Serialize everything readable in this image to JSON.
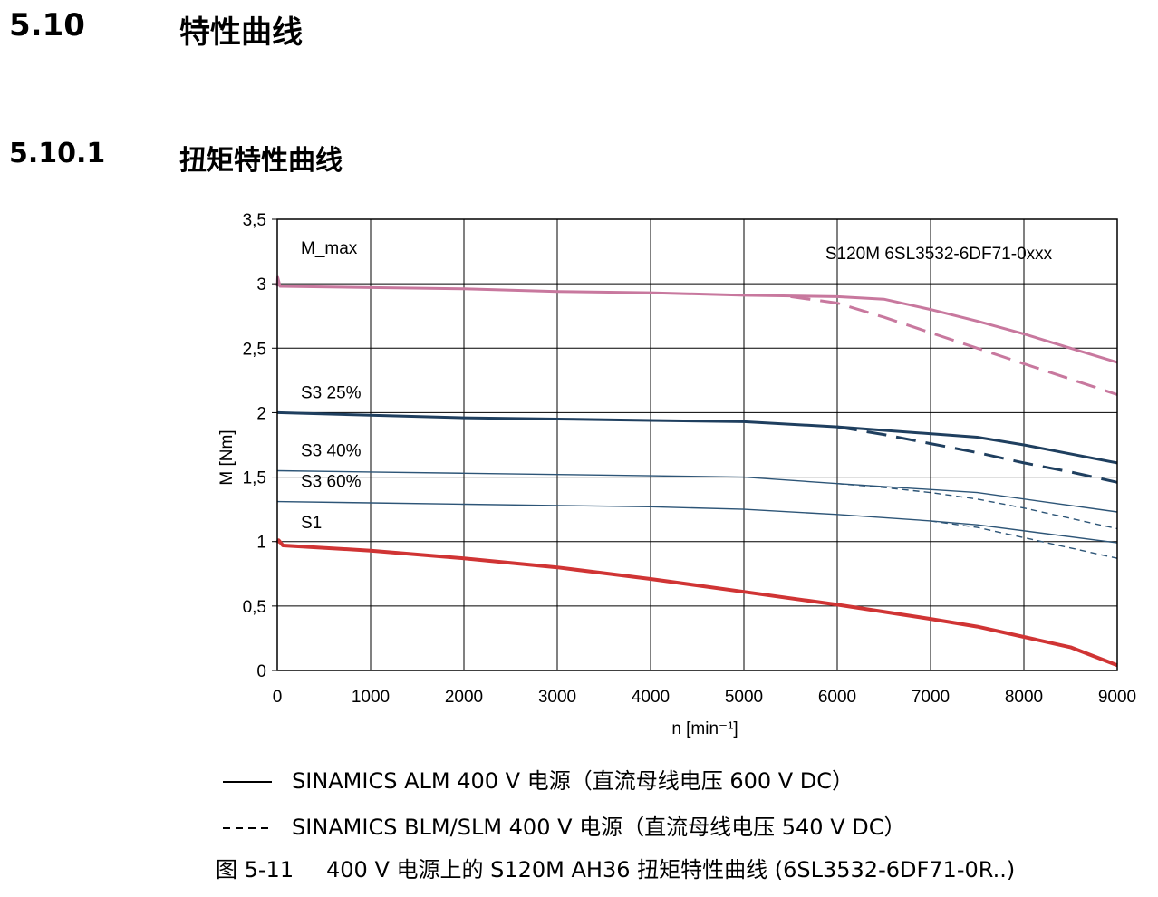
{
  "headings": {
    "section_number": "5.10",
    "section_title": "特性曲线",
    "subsection_number": "5.10.1",
    "subsection_title": "扭矩特性曲线"
  },
  "chart_data": {
    "type": "line",
    "model_label": "S120M 6SL3532-6DF71-0xxx",
    "xlabel": "n  [min⁻¹]",
    "ylabel": "M [Nm]",
    "xlim": [
      0,
      9000
    ],
    "ylim": [
      0,
      3.5
    ],
    "xticks": [
      0,
      1000,
      2000,
      3000,
      4000,
      5000,
      6000,
      7000,
      8000,
      9000
    ],
    "xtick_labels": [
      "0",
      "1000",
      "2000",
      "3000",
      "4000",
      "5000",
      "6000",
      "7000",
      "8000",
      "9000"
    ],
    "yticks": [
      0,
      0.5,
      1,
      1.5,
      2,
      2.5,
      3,
      3.5
    ],
    "ytick_labels": [
      "0",
      "0,5",
      "1",
      "1,5",
      "2",
      "2,5",
      "3",
      "3,5"
    ],
    "grid": true,
    "curve_labels": [
      {
        "text": "M_max",
        "series": "M_max"
      },
      {
        "text": "S3 25%",
        "series": "S3 25%"
      },
      {
        "text": "S3 40%",
        "series": "S3 40%"
      },
      {
        "text": "S3 60%",
        "series": "S3 60%"
      },
      {
        "text": "S1",
        "series": "S1"
      }
    ],
    "series": [
      {
        "name": "M_max",
        "supply": "ALM",
        "dash": false,
        "color": "#c8789e",
        "width": 3,
        "x": [
          0,
          5,
          30,
          1000,
          2000,
          3000,
          4000,
          5000,
          6000,
          6500,
          7000,
          7500,
          8000,
          8500,
          9000
        ],
        "y": [
          2.98,
          3.05,
          2.98,
          2.97,
          2.96,
          2.94,
          2.93,
          2.91,
          2.9,
          2.88,
          2.8,
          2.71,
          2.61,
          2.5,
          2.39
        ]
      },
      {
        "name": "M_max",
        "supply": "BLM/SLM",
        "dash": true,
        "color": "#c8789e",
        "width": 3,
        "x": [
          5500,
          6000,
          6500,
          7000,
          7500,
          8000,
          8500,
          9000
        ],
        "y": [
          2.9,
          2.85,
          2.74,
          2.62,
          2.5,
          2.38,
          2.26,
          2.14
        ]
      },
      {
        "name": "S3 25%",
        "supply": "ALM",
        "dash": false,
        "color": "#1f3f5f",
        "width": 3,
        "x": [
          0,
          1000,
          2000,
          3000,
          4000,
          5000,
          6000,
          7500,
          8000,
          9000
        ],
        "y": [
          2.0,
          1.98,
          1.96,
          1.95,
          1.94,
          1.93,
          1.89,
          1.81,
          1.75,
          1.61
        ]
      },
      {
        "name": "S3 25%",
        "supply": "BLM/SLM",
        "dash": true,
        "color": "#1f3f5f",
        "width": 3,
        "x": [
          6000,
          6500,
          7000,
          7500,
          8000,
          8500,
          9000
        ],
        "y": [
          1.89,
          1.83,
          1.76,
          1.69,
          1.61,
          1.54,
          1.46
        ]
      },
      {
        "name": "S3 40%",
        "supply": "ALM",
        "dash": false,
        "color": "#2d5577",
        "width": 1.4,
        "x": [
          0,
          1000,
          2000,
          3000,
          4000,
          5000,
          6000,
          7500,
          9000
        ],
        "y": [
          1.55,
          1.54,
          1.53,
          1.52,
          1.51,
          1.5,
          1.45,
          1.38,
          1.23
        ]
      },
      {
        "name": "S3 40%",
        "supply": "BLM/SLM",
        "dash": true,
        "color": "#2d5577",
        "width": 1.4,
        "x": [
          6000,
          6500,
          7000,
          7500,
          8000,
          8500,
          9000
        ],
        "y": [
          1.45,
          1.42,
          1.38,
          1.33,
          1.26,
          1.18,
          1.1
        ]
      },
      {
        "name": "S3 60%",
        "supply": "ALM",
        "dash": false,
        "color": "#2d5577",
        "width": 1.4,
        "x": [
          0,
          1000,
          2000,
          3000,
          4000,
          5000,
          6000,
          7000,
          7500,
          9000
        ],
        "y": [
          1.31,
          1.3,
          1.29,
          1.28,
          1.27,
          1.25,
          1.21,
          1.16,
          1.13,
          0.99
        ]
      },
      {
        "name": "S3 60%",
        "supply": "BLM/SLM",
        "dash": true,
        "color": "#2d5577",
        "width": 1.4,
        "x": [
          7000,
          7500,
          8000,
          8500,
          9000
        ],
        "y": [
          1.16,
          1.11,
          1.03,
          0.95,
          0.87
        ]
      },
      {
        "name": "S1",
        "supply": "ALM",
        "dash": false,
        "color": "#d03434",
        "width": 4,
        "x": [
          0,
          15,
          60,
          1000,
          2000,
          3000,
          4000,
          5000,
          6000,
          7000,
          7500,
          8000,
          8500,
          9000
        ],
        "y": [
          0.99,
          1.01,
          0.97,
          0.93,
          0.87,
          0.8,
          0.71,
          0.61,
          0.51,
          0.4,
          0.34,
          0.26,
          0.18,
          0.04
        ]
      }
    ]
  },
  "legend": {
    "solid_label": "SINAMICS ALM 400 V 电源（直流母线电压 600 V DC）",
    "dashed_label": "SINAMICS BLM/SLM 400 V 电源（直流母线电压 540 V DC）"
  },
  "caption": {
    "number": "图 5-11",
    "text": "400 V 电源上的 S120M AH36 扭矩特性曲线 (6SL3532-6DF71-0R..)"
  }
}
